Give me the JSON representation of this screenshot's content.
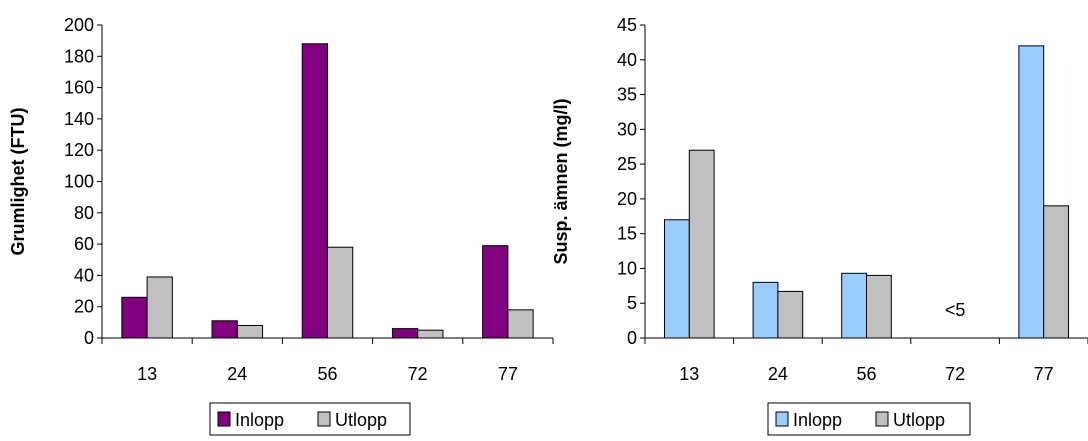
{
  "chart_data": [
    {
      "type": "bar",
      "categories": [
        "13",
        "24",
        "56",
        "72",
        "77"
      ],
      "series": [
        {
          "name": "Inlopp",
          "values": [
            26,
            11,
            188,
            6,
            59
          ],
          "color": "#800080"
        },
        {
          "name": "Utlopp",
          "values": [
            39,
            8,
            58,
            5,
            18
          ],
          "color": "#c0c0c0"
        }
      ],
      "title": "",
      "xlabel": "",
      "ylabel": "Grumlighet (FTU)",
      "ylim": [
        0,
        200
      ],
      "yticks": [
        "0",
        "20",
        "40",
        "60",
        "80",
        "100",
        "120",
        "140",
        "160",
        "180",
        "200"
      ],
      "grid": false,
      "legend": "bottom",
      "annotations": []
    },
    {
      "type": "bar",
      "categories": [
        "13",
        "24",
        "56",
        "72",
        "77"
      ],
      "series": [
        {
          "name": "Inlopp",
          "values": [
            17,
            8,
            9.3,
            null,
            42
          ],
          "color": "#99ccff"
        },
        {
          "name": "Utlopp",
          "values": [
            27,
            6.7,
            9,
            null,
            19
          ],
          "color": "#c0c0c0"
        }
      ],
      "title": "",
      "xlabel": "",
      "ylabel": "Susp. ämnen (mg/l)",
      "ylim": [
        0,
        45
      ],
      "yticks": [
        "0",
        "5",
        "10",
        "15",
        "20",
        "25",
        "30",
        "35",
        "40",
        "45"
      ],
      "grid": false,
      "legend": "bottom",
      "annotations": [
        {
          "category": "72",
          "text": "<5"
        }
      ]
    }
  ]
}
